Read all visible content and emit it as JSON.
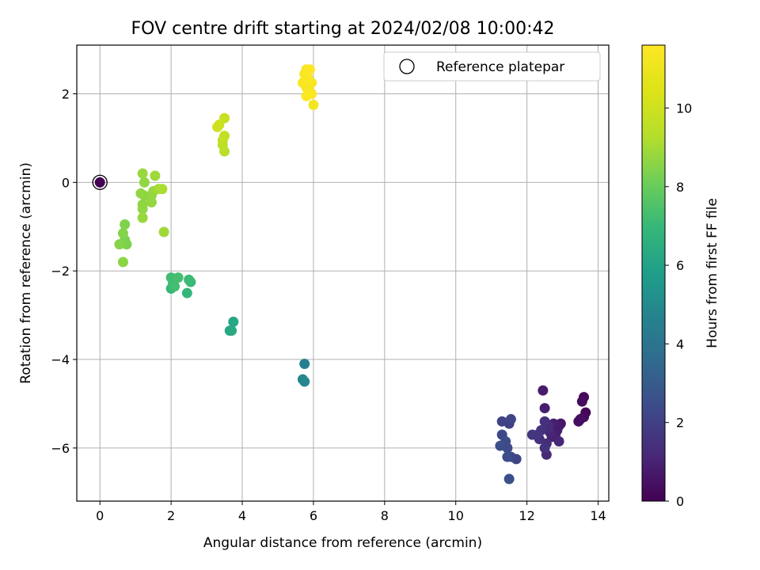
{
  "chart_data": {
    "type": "scatter",
    "title": "FOV centre drift starting at 2024/02/08 10:00:42",
    "xlabel": "Angular distance from reference (arcmin)",
    "ylabel": "Rotation from reference (arcmin)",
    "xlim": [
      -0.65,
      14.3
    ],
    "ylim": [
      -7.2,
      3.1
    ],
    "xticks": [
      0,
      2,
      4,
      6,
      8,
      10,
      12,
      14
    ],
    "yticks": [
      -6,
      -4,
      -2,
      0,
      2
    ],
    "grid": true,
    "colormap": "viridis",
    "colorbar": {
      "label": "Hours from first FF file",
      "range": [
        0,
        11.6
      ],
      "ticks": [
        0,
        2,
        4,
        6,
        8,
        10
      ]
    },
    "legend": {
      "position": "top-right",
      "entries": [
        "Reference platepar"
      ]
    },
    "reference_point": {
      "x": 0,
      "y": 0,
      "h": 0
    },
    "points": [
      {
        "x": 13.6,
        "y": -4.85,
        "h": 0.2
      },
      {
        "x": 13.55,
        "y": -4.95,
        "h": 0.3
      },
      {
        "x": 13.65,
        "y": -5.2,
        "h": 0.1
      },
      {
        "x": 13.6,
        "y": -5.3,
        "h": 0.25
      },
      {
        "x": 13.45,
        "y": -5.4,
        "h": 0.35
      },
      {
        "x": 13.5,
        "y": -5.35,
        "h": 0.4
      },
      {
        "x": 12.45,
        "y": -4.7,
        "h": 0.8
      },
      {
        "x": 12.5,
        "y": -5.1,
        "h": 0.9
      },
      {
        "x": 12.75,
        "y": -5.45,
        "h": 0.9
      },
      {
        "x": 12.9,
        "y": -5.5,
        "h": 0.7
      },
      {
        "x": 12.95,
        "y": -5.45,
        "h": 0.6
      },
      {
        "x": 12.85,
        "y": -5.6,
        "h": 0.8
      },
      {
        "x": 12.7,
        "y": -5.75,
        "h": 1.0
      },
      {
        "x": 12.9,
        "y": -5.85,
        "h": 1.1
      },
      {
        "x": 12.8,
        "y": -5.7,
        "h": 0.95
      },
      {
        "x": 12.6,
        "y": -5.55,
        "h": 1.2
      },
      {
        "x": 12.5,
        "y": -5.4,
        "h": 1.4
      },
      {
        "x": 12.4,
        "y": -5.6,
        "h": 1.5
      },
      {
        "x": 12.3,
        "y": -5.7,
        "h": 1.6
      },
      {
        "x": 12.15,
        "y": -5.7,
        "h": 1.7
      },
      {
        "x": 12.55,
        "y": -5.9,
        "h": 1.3
      },
      {
        "x": 12.5,
        "y": -6.0,
        "h": 1.5
      },
      {
        "x": 12.55,
        "y": -6.15,
        "h": 1.25
      },
      {
        "x": 12.65,
        "y": -5.65,
        "h": 1.1
      },
      {
        "x": 12.35,
        "y": -5.8,
        "h": 1.45
      },
      {
        "x": 12.6,
        "y": -5.5,
        "h": 1.35
      },
      {
        "x": 11.3,
        "y": -5.4,
        "h": 2.1
      },
      {
        "x": 11.55,
        "y": -5.35,
        "h": 2.2
      },
      {
        "x": 11.5,
        "y": -5.45,
        "h": 2.0
      },
      {
        "x": 11.3,
        "y": -5.7,
        "h": 2.3
      },
      {
        "x": 11.4,
        "y": -5.85,
        "h": 2.4
      },
      {
        "x": 11.25,
        "y": -5.95,
        "h": 2.5
      },
      {
        "x": 11.45,
        "y": -6.0,
        "h": 2.35
      },
      {
        "x": 11.55,
        "y": -6.2,
        "h": 2.25
      },
      {
        "x": 11.45,
        "y": -6.2,
        "h": 2.45
      },
      {
        "x": 11.7,
        "y": -6.25,
        "h": 2.15
      },
      {
        "x": 11.5,
        "y": -6.7,
        "h": 2.6
      },
      {
        "x": 5.75,
        "y": -4.1,
        "h": 4.5
      },
      {
        "x": 5.7,
        "y": -4.45,
        "h": 4.8
      },
      {
        "x": 5.75,
        "y": -4.5,
        "h": 4.9
      },
      {
        "x": 3.75,
        "y": -3.15,
        "h": 6.2
      },
      {
        "x": 3.7,
        "y": -3.35,
        "h": 6.3
      },
      {
        "x": 3.65,
        "y": -3.35,
        "h": 6.1
      },
      {
        "x": 2.0,
        "y": -2.15,
        "h": 7.2
      },
      {
        "x": 2.2,
        "y": -2.15,
        "h": 7.3
      },
      {
        "x": 2.05,
        "y": -2.3,
        "h": 7.1
      },
      {
        "x": 2.0,
        "y": -2.4,
        "h": 7.0
      },
      {
        "x": 2.1,
        "y": -2.35,
        "h": 7.25
      },
      {
        "x": 2.5,
        "y": -2.2,
        "h": 7.1
      },
      {
        "x": 2.55,
        "y": -2.25,
        "h": 7.0
      },
      {
        "x": 2.45,
        "y": -2.5,
        "h": 6.9
      },
      {
        "x": 0.7,
        "y": -0.95,
        "h": 8.4
      },
      {
        "x": 0.65,
        "y": -1.15,
        "h": 8.5
      },
      {
        "x": 0.7,
        "y": -1.3,
        "h": 8.3
      },
      {
        "x": 0.75,
        "y": -1.4,
        "h": 8.35
      },
      {
        "x": 0.55,
        "y": -1.4,
        "h": 8.5
      },
      {
        "x": 0.65,
        "y": -1.8,
        "h": 8.6
      },
      {
        "x": 1.2,
        "y": 0.2,
        "h": 8.8
      },
      {
        "x": 1.25,
        "y": 0.0,
        "h": 8.7
      },
      {
        "x": 1.55,
        "y": 0.15,
        "h": 8.9
      },
      {
        "x": 1.15,
        "y": -0.25,
        "h": 8.7
      },
      {
        "x": 1.25,
        "y": -0.3,
        "h": 8.6
      },
      {
        "x": 1.45,
        "y": -0.3,
        "h": 8.7
      },
      {
        "x": 1.5,
        "y": -0.2,
        "h": 8.8
      },
      {
        "x": 1.65,
        "y": -0.15,
        "h": 9.0
      },
      {
        "x": 1.75,
        "y": -0.15,
        "h": 9.1
      },
      {
        "x": 1.2,
        "y": -0.5,
        "h": 8.65
      },
      {
        "x": 1.45,
        "y": -0.45,
        "h": 8.75
      },
      {
        "x": 1.2,
        "y": -0.6,
        "h": 8.7
      },
      {
        "x": 1.2,
        "y": -0.8,
        "h": 8.8
      },
      {
        "x": 1.8,
        "y": -1.12,
        "h": 8.9
      },
      {
        "x": 3.5,
        "y": 1.45,
        "h": 9.8
      },
      {
        "x": 3.35,
        "y": 1.3,
        "h": 9.9
      },
      {
        "x": 3.3,
        "y": 1.25,
        "h": 10.0
      },
      {
        "x": 3.5,
        "y": 1.05,
        "h": 9.7
      },
      {
        "x": 3.45,
        "y": 0.95,
        "h": 9.6
      },
      {
        "x": 3.45,
        "y": 0.85,
        "h": 9.5
      },
      {
        "x": 3.5,
        "y": 0.7,
        "h": 9.4
      },
      {
        "x": 5.8,
        "y": 2.55,
        "h": 11.5
      },
      {
        "x": 5.9,
        "y": 2.55,
        "h": 11.6
      },
      {
        "x": 5.75,
        "y": 2.45,
        "h": 11.4
      },
      {
        "x": 5.85,
        "y": 2.35,
        "h": 11.5
      },
      {
        "x": 5.7,
        "y": 2.25,
        "h": 11.45
      },
      {
        "x": 5.95,
        "y": 2.25,
        "h": 11.35
      },
      {
        "x": 5.8,
        "y": 2.15,
        "h": 11.3
      },
      {
        "x": 5.9,
        "y": 2.05,
        "h": 11.4
      },
      {
        "x": 5.95,
        "y": 2.0,
        "h": 11.5
      },
      {
        "x": 5.8,
        "y": 1.95,
        "h": 11.55
      },
      {
        "x": 6.0,
        "y": 1.75,
        "h": 11.2
      }
    ]
  }
}
